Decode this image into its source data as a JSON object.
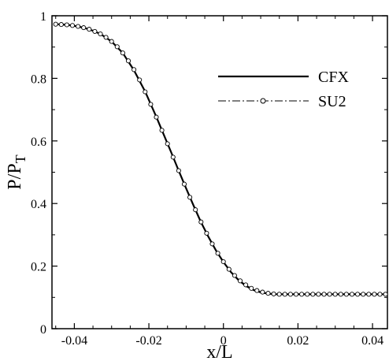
{
  "chart_data": {
    "type": "line",
    "xlabel": "x/L",
    "ylabel_main": "P/P",
    "ylabel_sub": "T",
    "xlim": [
      -0.046,
      0.044
    ],
    "ylim": [
      0,
      1
    ],
    "xticks": [
      -0.04,
      -0.02,
      0,
      0.02,
      0.04
    ],
    "xtick_labels": [
      "-0.04",
      "-0.02",
      "0",
      "0.02",
      "0.04"
    ],
    "yticks": [
      0,
      0.2,
      0.4,
      0.6,
      0.8,
      1
    ],
    "ytick_labels": [
      "0",
      "0.2",
      "0.4",
      "0.6",
      "0.8",
      "1"
    ],
    "grid": false,
    "legend_position": "upper-right",
    "series": [
      {
        "name": "CFX",
        "style": "solid",
        "color": "#000000",
        "x": [
          -0.045,
          -0.042,
          -0.039,
          -0.036,
          -0.033,
          -0.03,
          -0.027,
          -0.024,
          -0.021,
          -0.018,
          -0.016,
          -0.014,
          -0.012,
          -0.01,
          -0.008,
          -0.006,
          -0.004,
          -0.002,
          0.0,
          0.002,
          0.004,
          0.006,
          0.008,
          0.01,
          0.012,
          0.014,
          0.016,
          0.018,
          0.02,
          0.022,
          0.025,
          0.03,
          0.035,
          0.04,
          0.044
        ],
        "y": [
          0.973,
          0.971,
          0.966,
          0.957,
          0.942,
          0.918,
          0.881,
          0.826,
          0.758,
          0.677,
          0.62,
          0.563,
          0.505,
          0.448,
          0.393,
          0.34,
          0.293,
          0.25,
          0.213,
          0.181,
          0.156,
          0.137,
          0.124,
          0.116,
          0.112,
          0.11,
          0.11,
          0.11,
          0.11,
          0.11,
          0.11,
          0.11,
          0.11,
          0.11,
          0.11
        ]
      },
      {
        "name": "SU2",
        "style": "dashdot-circle",
        "color": "#000000",
        "x": [
          -0.045,
          -0.0435,
          -0.042,
          -0.0405,
          -0.039,
          -0.0375,
          -0.036,
          -0.0345,
          -0.033,
          -0.0315,
          -0.03,
          -0.0285,
          -0.027,
          -0.0255,
          -0.024,
          -0.0225,
          -0.021,
          -0.0195,
          -0.018,
          -0.0165,
          -0.015,
          -0.0135,
          -0.012,
          -0.0105,
          -0.009,
          -0.0075,
          -0.006,
          -0.0045,
          -0.003,
          -0.0015,
          0.0,
          0.0015,
          0.003,
          0.0045,
          0.006,
          0.0075,
          0.009,
          0.0105,
          0.012,
          0.0135,
          0.015,
          0.0165,
          0.018,
          0.0195,
          0.021,
          0.0225,
          0.024,
          0.0255,
          0.027,
          0.0285,
          0.03,
          0.0315,
          0.033,
          0.0345,
          0.036,
          0.0375,
          0.039,
          0.0405,
          0.042,
          0.0435
        ],
        "y": [
          0.973,
          0.972,
          0.971,
          0.969,
          0.966,
          0.962,
          0.957,
          0.95,
          0.942,
          0.931,
          0.918,
          0.901,
          0.881,
          0.856,
          0.828,
          0.795,
          0.757,
          0.717,
          0.676,
          0.634,
          0.591,
          0.548,
          0.505,
          0.462,
          0.42,
          0.38,
          0.341,
          0.305,
          0.271,
          0.241,
          0.214,
          0.19,
          0.17,
          0.153,
          0.14,
          0.129,
          0.122,
          0.117,
          0.113,
          0.111,
          0.11,
          0.11,
          0.11,
          0.11,
          0.11,
          0.11,
          0.11,
          0.11,
          0.11,
          0.11,
          0.11,
          0.11,
          0.11,
          0.11,
          0.11,
          0.11,
          0.11,
          0.11,
          0.11,
          0.11
        ]
      }
    ]
  }
}
